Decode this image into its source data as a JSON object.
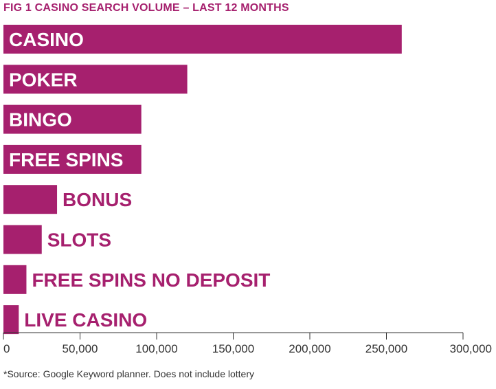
{
  "figure": {
    "fig_label": "FIG 1",
    "title_text": "CASINO SEARCH VOLUME – LAST 12 MONTHS",
    "footnote": "*Source: Google Keyword planner. Does not include lottery"
  },
  "colors": {
    "bar": "#a6206e",
    "label_inside": "#ffffff",
    "label_outside": "#a6206e",
    "axis": "#333333",
    "text": "#333333"
  },
  "chart_data": {
    "type": "bar",
    "orientation": "horizontal",
    "title": "CASINO SEARCH VOLUME – LAST 12 MONTHS",
    "categories": [
      "CASINO",
      "POKER",
      "BINGO",
      "FREE SPINS",
      "BONUS",
      "SLOTS",
      "FREE SPINS NO DEPOSIT",
      "LIVE CASINO"
    ],
    "values": [
      260000,
      120000,
      90000,
      90000,
      35000,
      25000,
      15000,
      10000
    ],
    "xlim": [
      0,
      300000
    ],
    "xticks": [
      0,
      50000,
      100000,
      150000,
      200000,
      250000,
      300000
    ],
    "xtick_labels": [
      "0",
      "50,000",
      "100,000",
      "150,000",
      "200,000",
      "250,000",
      "300,000"
    ],
    "xlabel": "",
    "ylabel": "",
    "grid": false,
    "legend": "none"
  }
}
